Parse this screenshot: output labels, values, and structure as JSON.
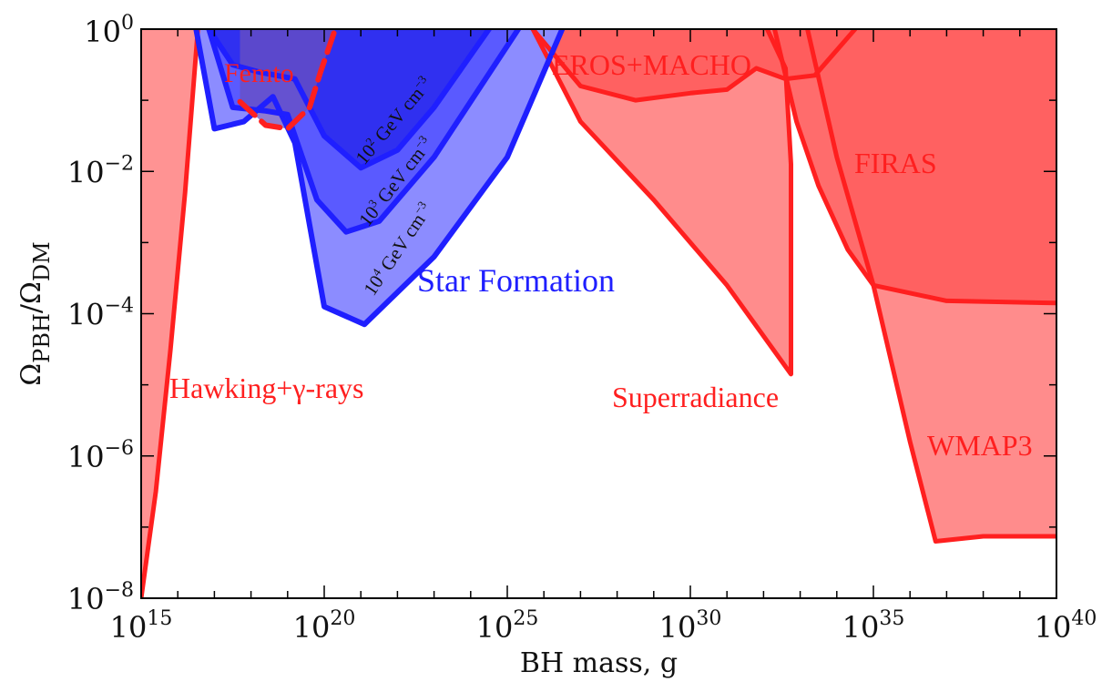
{
  "chart_data": {
    "type": "area",
    "xlabel": "BH mass, g",
    "ylabel_main": "Ω",
    "ylabel_sub1": "PBH",
    "ylabel_sep": "/Ω",
    "ylabel_sub2": "DM",
    "x_log": true,
    "y_log": true,
    "xlim_exp": [
      15,
      40
    ],
    "ylim_exp": [
      -8,
      0
    ],
    "x_ticks": [
      {
        "base": "10",
        "exp": "15",
        "value_exp": 15
      },
      {
        "base": "10",
        "exp": "20",
        "value_exp": 20
      },
      {
        "base": "10",
        "exp": "25",
        "value_exp": 25
      },
      {
        "base": "10",
        "exp": "30",
        "value_exp": 30
      },
      {
        "base": "10",
        "exp": "35",
        "value_exp": 35
      },
      {
        "base": "10",
        "exp": "40",
        "value_exp": 40
      }
    ],
    "y_ticks": [
      {
        "base": "10",
        "exp": "−8",
        "value_exp": -8
      },
      {
        "base": "10",
        "exp": "−6",
        "value_exp": -6
      },
      {
        "base": "10",
        "exp": "−4",
        "value_exp": -4
      },
      {
        "base": "10",
        "exp": "−2",
        "value_exp": -2
      },
      {
        "base": "10",
        "exp": "0",
        "value_exp": 0
      }
    ],
    "colors": {
      "red_line": "#ff1f1f",
      "red_fill": "#ff8080",
      "red_fill_dark": "#ff5c5c",
      "blue_line": "#1f1fff",
      "blue_fill_light": "#8c8cff",
      "blue_fill_mid": "#5a5aff",
      "blue_fill_dark": "#3030f0",
      "purple_overlap": "#6a50c0"
    },
    "series": [
      {
        "name": "Hawking+γ-rays",
        "color_key": "red",
        "points": [
          [
            15.0,
            -8.0
          ],
          [
            15.4,
            -6.5
          ],
          [
            15.8,
            -4.5
          ],
          [
            16.2,
            -2.3
          ],
          [
            16.55,
            0.0
          ]
        ]
      },
      {
        "name": "Femto",
        "color_key": "red_dashed",
        "points": [
          [
            17.7,
            -1.02
          ],
          [
            18.4,
            -1.35
          ],
          [
            19.0,
            -1.4
          ],
          [
            19.6,
            -1.1
          ],
          [
            19.9,
            -0.6
          ],
          [
            20.3,
            0.0
          ]
        ]
      },
      {
        "name": "10² GeV cm⁻³",
        "color_key": "blue_dark",
        "points": [
          [
            16.85,
            0.0
          ],
          [
            17.5,
            -0.5
          ],
          [
            18.2,
            -0.6
          ],
          [
            19.2,
            -0.7
          ],
          [
            20.0,
            -1.5
          ],
          [
            21.0,
            -1.95
          ],
          [
            22.0,
            -1.7
          ],
          [
            23.0,
            -1.1
          ],
          [
            24.5,
            0.0
          ]
        ]
      },
      {
        "name": "10³ GeV cm⁻³",
        "color_key": "blue_mid",
        "points": [
          [
            16.85,
            0.0
          ],
          [
            17.5,
            -1.1
          ],
          [
            18.4,
            -1.15
          ],
          [
            19.0,
            -1.2
          ],
          [
            19.8,
            -2.4
          ],
          [
            20.6,
            -2.85
          ],
          [
            21.5,
            -2.7
          ],
          [
            23.0,
            -1.8
          ],
          [
            25.3,
            0.0
          ]
        ]
      },
      {
        "name": "10⁴ GeV cm⁻³",
        "color_key": "blue_light",
        "points": [
          [
            16.5,
            0.0
          ],
          [
            17.0,
            -1.4
          ],
          [
            17.8,
            -1.3
          ],
          [
            18.6,
            -0.95
          ],
          [
            19.2,
            -1.6
          ],
          [
            20.0,
            -3.9
          ],
          [
            21.1,
            -4.15
          ],
          [
            23.0,
            -3.2
          ],
          [
            25.0,
            -1.8
          ],
          [
            26.5,
            0.0
          ]
        ]
      },
      {
        "name": "EROS+MACHO",
        "color_key": "red",
        "points": [
          [
            25.7,
            0.0
          ],
          [
            27.0,
            -0.8
          ],
          [
            28.5,
            -1.0
          ],
          [
            30.0,
            -0.9
          ],
          [
            31.0,
            -0.85
          ],
          [
            31.8,
            -0.55
          ],
          [
            32.6,
            -0.7
          ],
          [
            33.4,
            -0.65
          ],
          [
            34.5,
            0.0
          ]
        ]
      },
      {
        "name": "Superradiance",
        "color_key": "red",
        "points": [
          [
            25.7,
            0.0
          ],
          [
            27.0,
            -1.3
          ],
          [
            29.0,
            -2.4
          ],
          [
            31.0,
            -3.6
          ],
          [
            32.75,
            -4.85
          ],
          [
            32.75,
            -1.9
          ],
          [
            32.6,
            -0.55
          ],
          [
            32.1,
            0.0
          ]
        ]
      },
      {
        "name": "FIRAS",
        "color_key": "red_dark",
        "points": [
          [
            32.3,
            0.0
          ],
          [
            32.9,
            -1.3
          ],
          [
            33.5,
            -2.2
          ],
          [
            34.3,
            -3.1
          ],
          [
            35.0,
            -3.6
          ],
          [
            37.0,
            -3.82
          ],
          [
            40.0,
            -3.85
          ]
        ]
      },
      {
        "name": "WMAP3",
        "color_key": "red",
        "points": [
          [
            33.2,
            0.0
          ],
          [
            34.0,
            -1.8
          ],
          [
            35.0,
            -3.6
          ],
          [
            36.0,
            -5.8
          ],
          [
            36.7,
            -7.2
          ],
          [
            38.0,
            -7.13
          ],
          [
            40.0,
            -7.13
          ]
        ]
      }
    ],
    "labels": [
      {
        "text": "Femto",
        "color_key": "red"
      },
      {
        "text": "Hawking+γ-rays",
        "color_key": "red"
      },
      {
        "text": "Star Formation",
        "color_key": "blue"
      },
      {
        "text": "EROS+MACHO",
        "color_key": "red"
      },
      {
        "text": "Superradiance",
        "color_key": "red"
      },
      {
        "text": "FIRAS",
        "color_key": "red"
      },
      {
        "text": "WMAP3",
        "color_key": "red"
      },
      {
        "text": "GeV cm",
        "color_key": "black"
      }
    ],
    "curve_labels": [
      {
        "base": "10",
        "exp": "2",
        "unit": " GeV cm",
        "unit_exp": "−3"
      },
      {
        "base": "10",
        "exp": "3",
        "unit": " GeV cm",
        "unit_exp": "−3"
      },
      {
        "base": "10",
        "exp": "4",
        "unit": " GeV cm",
        "unit_exp": "−3"
      }
    ]
  }
}
